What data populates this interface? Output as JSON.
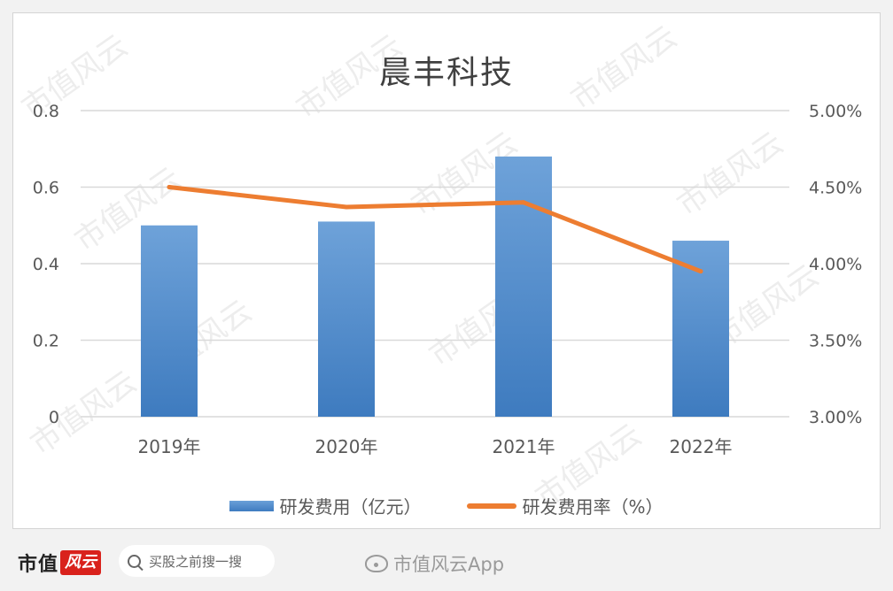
{
  "chart_data": {
    "type": "bar+line",
    "title": "晨丰科技",
    "categories": [
      "2019年",
      "2020年",
      "2021年",
      "2022年"
    ],
    "series": [
      {
        "name": "研发费用（亿元）",
        "type": "bar",
        "axis": "left",
        "values": [
          0.5,
          0.51,
          0.68,
          0.46
        ],
        "color": "#4a86c8"
      },
      {
        "name": "研发费用率（%）",
        "type": "line",
        "axis": "right",
        "values": [
          4.5,
          4.37,
          4.4,
          3.95
        ],
        "color": "#ed7d31"
      }
    ],
    "yleft": {
      "ylim": [
        0,
        0.8
      ],
      "ticks": [
        "0",
        "0.2",
        "0.4",
        "0.6",
        "0.8"
      ]
    },
    "yright": {
      "ylim": [
        3.0,
        5.0
      ],
      "ticks": [
        "3.00%",
        "3.50%",
        "4.00%",
        "4.50%",
        "5.00%"
      ]
    },
    "grid": true,
    "legend": "bottom"
  },
  "watermark": "市值风云",
  "footer": {
    "brand": "市值",
    "brand_mark": "风云",
    "search_placeholder": "买股之前搜一搜",
    "source": "市值风云App"
  }
}
